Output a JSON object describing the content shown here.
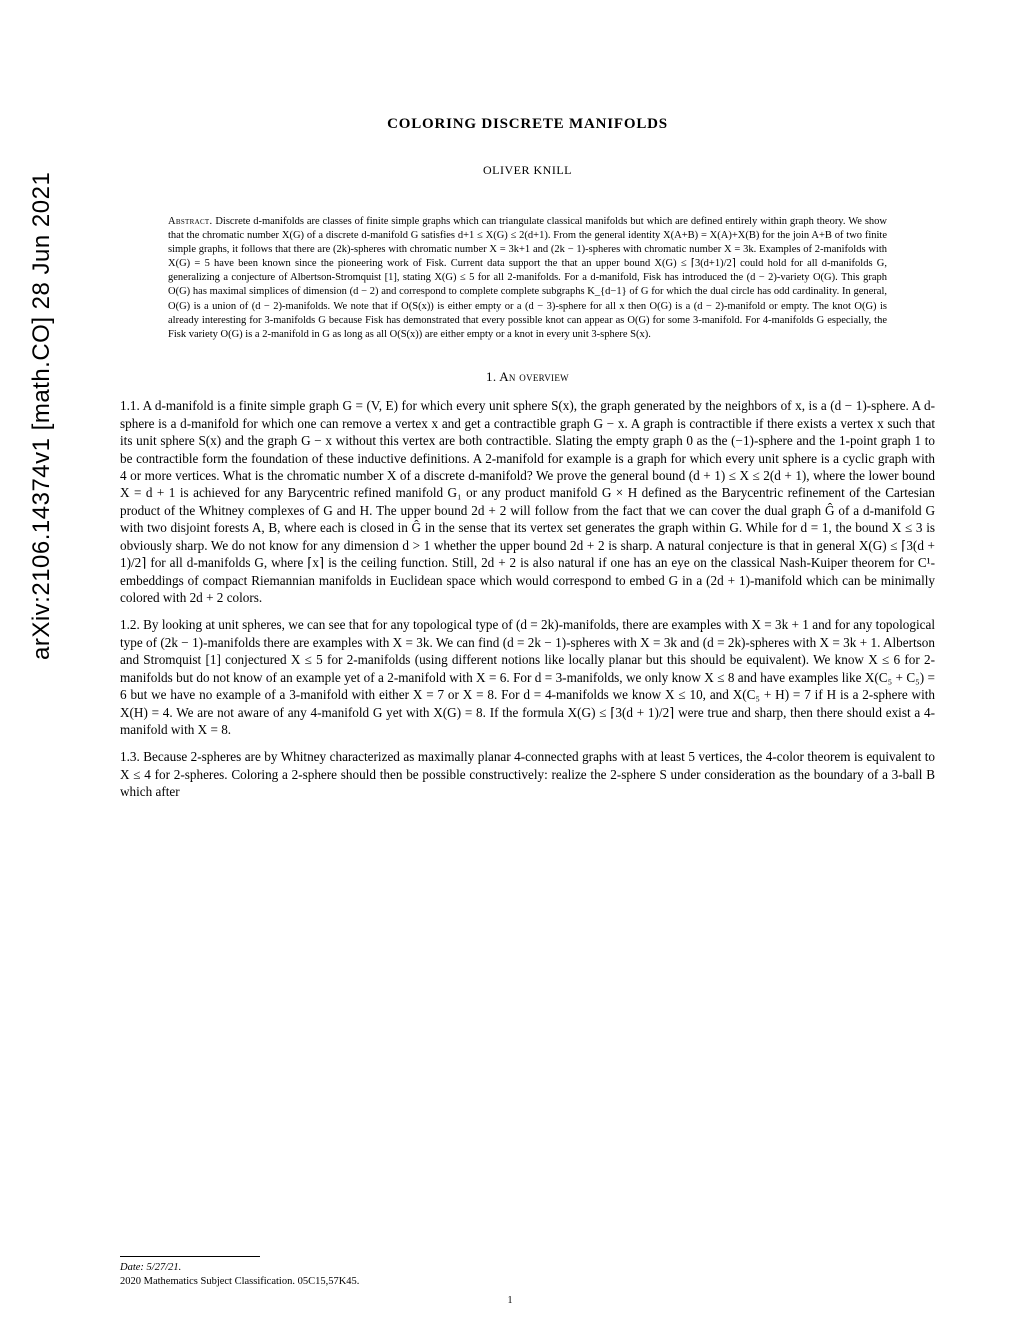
{
  "arxiv": "arXiv:2106.14374v1  [math.CO]  28 Jun 2021",
  "title": "COLORING DISCRETE MANIFOLDS",
  "author": "OLIVER KNILL",
  "abstract_label": "Abstract.",
  "abstract": "Discrete d-manifolds are classes of finite simple graphs which can triangulate classical manifolds but which are defined entirely within graph theory. We show that the chromatic number X(G) of a discrete d-manifold G satisfies d+1 ≤ X(G) ≤ 2(d+1). From the general identity X(A+B) = X(A)+X(B) for the join A+B of two finite simple graphs, it follows that there are (2k)-spheres with chromatic number X = 3k+1 and (2k − 1)-spheres with chromatic number X = 3k. Examples of 2-manifolds with X(G) = 5 have been known since the pioneering work of Fisk. Current data support the that an upper bound X(G) ≤ ⌈3(d+1)/2⌉ could hold for all d-manifolds G, generalizing a conjecture of Albertson-Stromquist [1], stating X(G) ≤ 5 for all 2-manifolds. For a d-manifold, Fisk has introduced the (d − 2)-variety O(G). This graph O(G) has maximal simplices of dimension (d − 2) and correspond to complete complete subgraphs K_{d−1} of G for which the dual circle has odd cardinality. In general, O(G) is a union of (d − 2)-manifolds. We note that if O(S(x)) is either empty or a (d − 3)-sphere for all x then O(G) is a (d − 2)-manifold or empty. The knot O(G) is already interesting for 3-manifolds G because Fisk has demonstrated that every possible knot can appear as O(G) for some 3-manifold. For 4-manifolds G especially, the Fisk variety O(G) is a 2-manifold in G as long as all O(S(x)) are either empty or a knot in every unit 3-sphere S(x).",
  "section1_heading": "1. An overview",
  "para11": "1.1.   A d-manifold is a finite simple graph G = (V, E) for which every unit sphere S(x), the graph generated by the neighbors of x, is a (d − 1)-sphere. A d-sphere is a d-manifold for which one can remove a vertex x and get a contractible graph G − x. A graph is contractible if there exists a vertex x such that its unit sphere S(x) and the graph G − x without this vertex are both contractible. Slating the empty graph 0 as the (−1)-sphere and the 1-point graph 1 to be contractible form the foundation of these inductive definitions. A 2-manifold for example is a graph for which every unit sphere is a cyclic graph with 4 or more vertices. What is the chromatic number X of a discrete d-manifold? We prove the general bound (d + 1) ≤ X ≤ 2(d + 1), where the lower bound X = d + 1 is achieved for any Barycentric refined manifold G₁ or any product manifold G × H defined as the Barycentric refinement of the Cartesian product of the Whitney complexes of G and H. The upper bound 2d + 2 will follow from the fact that we can cover the dual graph Ĝ of a d-manifold G with two disjoint forests A, B, where each is closed in Ĝ in the sense that its vertex set generates the graph within G. While for d = 1, the bound X ≤ 3 is obviously sharp. We do not know for any dimension d > 1 whether the upper bound 2d + 2 is sharp. A natural conjecture is that in general X(G) ≤ ⌈3(d + 1)/2⌉ for all d-manifolds G, where ⌈x⌉ is the ceiling function. Still, 2d + 2 is also natural if one has an eye on the classical Nash-Kuiper theorem for C¹-embeddings of compact Riemannian manifolds in Euclidean space which would correspond to embed G in a (2d + 1)-manifold which can be minimally colored with 2d + 2 colors.",
  "para12": "1.2.   By looking at unit spheres, we can see that for any topological type of (d = 2k)-manifolds, there are examples with X = 3k + 1 and for any topological type of (2k − 1)-manifolds there are examples with X = 3k. We can find (d = 2k − 1)-spheres with X = 3k and (d = 2k)-spheres with X = 3k + 1. Albertson and Stromquist [1] conjectured X ≤ 5 for 2-manifolds (using different notions like locally planar but this should be equivalent). We know X ≤ 6 for 2-manifolds but do not know of an example yet of a 2-manifold with X = 6. For d = 3-manifolds, we only know X ≤ 8 and have examples like X(C₅ + C₅) = 6 but we have no example of a 3-manifold with either X = 7 or X = 8. For d = 4-manifolds we know X ≤ 10, and X(C₅ + H) = 7 if H is a 2-sphere with X(H) = 4. We are not aware of any 4-manifold G yet with X(G) = 8. If the formula X(G) ≤ ⌈3(d + 1)/2⌉ were true and sharp, then there should exist a 4-manifold with X = 8.",
  "para13": "1.3.   Because 2-spheres are by Whitney characterized as maximally planar 4-connected graphs with at least 5 vertices, the 4-color theorem is equivalent to X ≤ 4 for 2-spheres. Coloring a 2-sphere should then be possible constructively: realize the 2-sphere S under consideration as the boundary of a 3-ball B which after",
  "footer_date_label": "Date",
  "footer_date": ": 5/27/21.",
  "footer_msc_label": "2020 Mathematics Subject Classification.",
  "footer_msc": "05C15,57K45.",
  "page_number": "1"
}
